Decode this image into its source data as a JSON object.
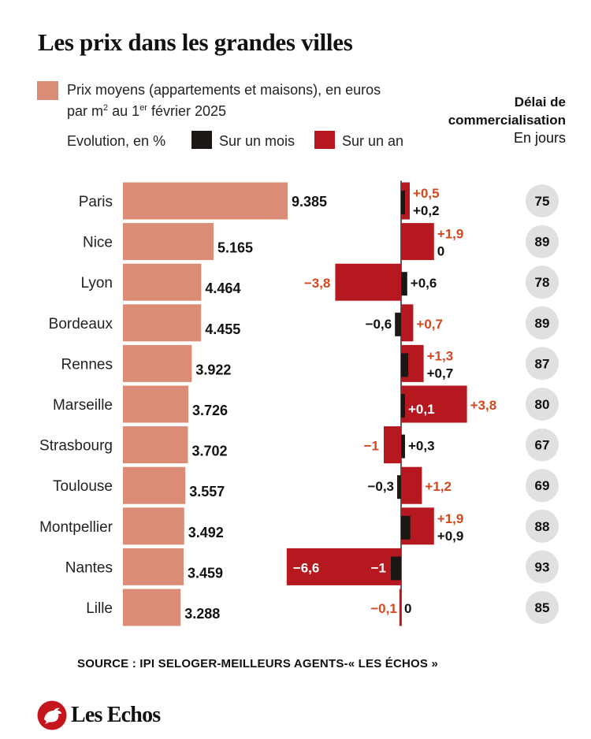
{
  "title": "Les prix dans les grandes villes",
  "legend": {
    "price_line1": "Prix moyens (appartements et maisons), en euros",
    "price_line2_prefix": "par m",
    "price_line2_sup": "2",
    "price_line2_mid": " au 1",
    "price_line2_sup2": "er",
    "price_line2_suffix": " février 2025",
    "evolution_label": "Evolution, en %",
    "month_label": "Sur un mois",
    "year_label": "Sur un an",
    "delai_line1": "Délai de",
    "delai_line2": "commercialisation",
    "delai_unit": "En jours"
  },
  "colors": {
    "price_bar": "#db8c76",
    "month_bar": "#1c1614",
    "year_bar": "#b5181f",
    "year_text": "#d4471f",
    "circle": "#e0e0e0"
  },
  "source": "SOURCE : IPI SELOGER-MEILLEURS AGENTS-« LES ÉCHOS »",
  "brand": "Les Echos",
  "chart_data": {
    "type": "bar",
    "categories": [
      "Paris",
      "Nice",
      "Lyon",
      "Bordeaux",
      "Rennes",
      "Marseille",
      "Strasbourg",
      "Toulouse",
      "Montpellier",
      "Nantes",
      "Lille"
    ],
    "series": [
      {
        "name": "Prix moyens (appartements et maisons), en euros par m² au 1er février 2025",
        "values": [
          9385,
          5165,
          4464,
          4455,
          3922,
          3726,
          3702,
          3557,
          3492,
          3459,
          3288
        ],
        "labels": [
          "9.385",
          "5.165",
          "4.464",
          "4.455",
          "3.922",
          "3.726",
          "3.702",
          "3.557",
          "3.492",
          "3.459",
          "3.288"
        ]
      },
      {
        "name": "Sur un mois",
        "values": [
          0.2,
          0,
          0.6,
          -0.6,
          0.7,
          0.1,
          0.3,
          -0.3,
          0.9,
          -1,
          0
        ],
        "labels": [
          "+0,2",
          "0",
          "+0,6",
          "−0,6",
          "+0,7",
          "+0,1",
          "+0,3",
          "−0,3",
          "+0,9",
          "−1",
          "0"
        ]
      },
      {
        "name": "Sur un an",
        "values": [
          0.5,
          1.9,
          -3.8,
          0.7,
          1.3,
          3.8,
          -1,
          1.2,
          1.9,
          -6.6,
          -0.1
        ],
        "labels": [
          "+0,5",
          "+1,9",
          "−3,8",
          "+0,7",
          "+1,3",
          "+3,8",
          "−1",
          "+1,2",
          "+1,9",
          "−6,6",
          "−0,1"
        ]
      },
      {
        "name": "Délai de commercialisation",
        "values": [
          75,
          89,
          78,
          89,
          87,
          80,
          67,
          69,
          88,
          93,
          85
        ],
        "labels": [
          "75",
          "89",
          "78",
          "89",
          "87",
          "80",
          "67",
          "69",
          "88",
          "93",
          "85"
        ]
      }
    ]
  }
}
